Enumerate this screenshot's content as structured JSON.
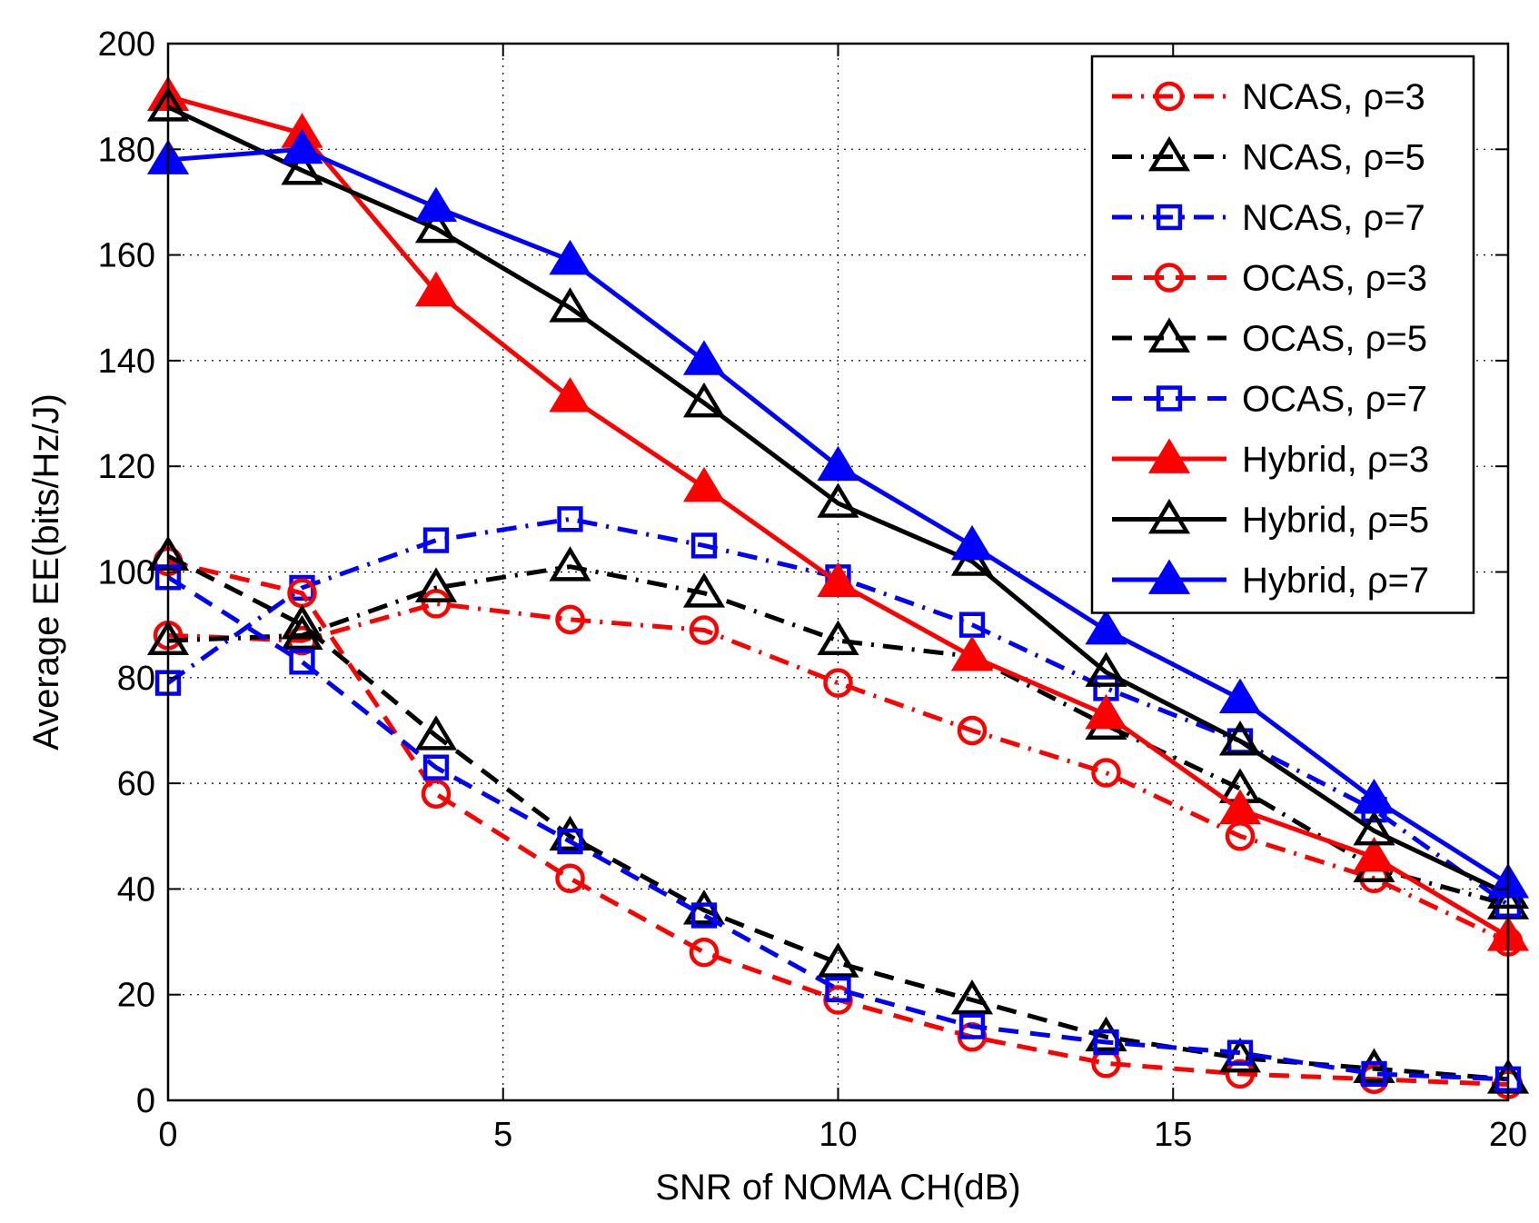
{
  "chart_data": {
    "type": "line",
    "title": "",
    "xlabel": "SNR of NOMA CH(dB)",
    "ylabel": "Average EE(bits/Hz/J)",
    "xlim": [
      0,
      20
    ],
    "ylim": [
      0,
      200
    ],
    "xticks": [
      0,
      5,
      10,
      15,
      20
    ],
    "yticks": [
      0,
      20,
      40,
      60,
      80,
      100,
      120,
      140,
      160,
      180,
      200
    ],
    "grid": true,
    "legend_position": "top-right",
    "x": [
      0,
      2,
      4,
      6,
      8,
      10,
      12,
      14,
      16,
      18,
      20
    ],
    "series": [
      {
        "name": "NCAS, ρ=3",
        "color": "#ff0000",
        "dash": "dashdot",
        "marker": "circle",
        "fill": "none",
        "values": [
          88,
          87,
          94,
          91,
          89,
          79,
          70,
          62,
          50,
          42,
          30
        ]
      },
      {
        "name": "NCAS, ρ=5",
        "color": "#000000",
        "dash": "dashdot",
        "marker": "triangle",
        "fill": "none",
        "values": [
          87,
          88,
          97,
          101,
          96,
          87,
          84,
          71,
          59,
          44,
          37
        ]
      },
      {
        "name": "NCAS, ρ=7",
        "color": "#0000ff",
        "dash": "dashdot",
        "marker": "square",
        "fill": "none",
        "values": [
          79,
          97,
          106,
          110,
          105,
          99,
          90,
          78,
          68,
          55,
          37
        ]
      },
      {
        "name": "OCAS, ρ=3",
        "color": "#ff0000",
        "dash": "dashed",
        "marker": "circle",
        "fill": "none",
        "values": [
          102,
          96,
          58,
          42,
          28,
          19,
          12,
          7,
          5,
          4,
          3
        ]
      },
      {
        "name": "OCAS, ρ=5",
        "color": "#000000",
        "dash": "dashed",
        "marker": "triangle",
        "fill": "none",
        "values": [
          103,
          90,
          69,
          50,
          36,
          26,
          19,
          12,
          8,
          6,
          4
        ]
      },
      {
        "name": "OCAS, ρ=7",
        "color": "#0000ff",
        "dash": "dashed",
        "marker": "square",
        "fill": "none",
        "values": [
          99,
          83,
          63,
          49,
          35,
          21,
          14,
          11,
          9,
          5,
          4
        ]
      },
      {
        "name": "Hybrid, ρ=3",
        "color": "#ff0000",
        "dash": "solid",
        "marker": "triangle",
        "fill": "color",
        "values": [
          190,
          183,
          153,
          133,
          116,
          98,
          84,
          73,
          55,
          46,
          31
        ]
      },
      {
        "name": "Hybrid, ρ=5",
        "color": "#000000",
        "dash": "solid",
        "marker": "triangle",
        "fill": "none",
        "values": [
          188,
          176,
          165,
          150,
          132,
          113,
          102,
          81,
          68,
          51,
          39
        ]
      },
      {
        "name": "Hybrid, ρ=7",
        "color": "#0000ff",
        "dash": "solid",
        "marker": "triangle",
        "fill": "color",
        "values": [
          178,
          180,
          169,
          159,
          140,
          120,
          105,
          89,
          76,
          57,
          41
        ]
      }
    ]
  }
}
